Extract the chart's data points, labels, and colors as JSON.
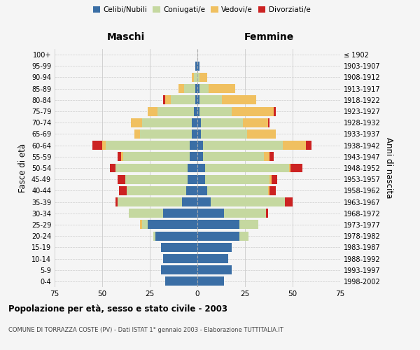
{
  "age_groups": [
    "0-4",
    "5-9",
    "10-14",
    "15-19",
    "20-24",
    "25-29",
    "30-34",
    "35-39",
    "40-44",
    "45-49",
    "50-54",
    "55-59",
    "60-64",
    "65-69",
    "70-74",
    "75-79",
    "80-84",
    "85-89",
    "90-94",
    "95-99",
    "100+"
  ],
  "birth_years": [
    "1998-2002",
    "1993-1997",
    "1988-1992",
    "1983-1987",
    "1978-1982",
    "1973-1977",
    "1968-1972",
    "1963-1967",
    "1958-1962",
    "1953-1957",
    "1948-1952",
    "1943-1947",
    "1938-1942",
    "1933-1937",
    "1928-1932",
    "1923-1927",
    "1918-1922",
    "1913-1917",
    "1908-1912",
    "1903-1907",
    "≤ 1902"
  ],
  "males": {
    "celibi": [
      17,
      19,
      18,
      19,
      22,
      26,
      18,
      8,
      6,
      5,
      5,
      4,
      4,
      3,
      3,
      2,
      1,
      1,
      0,
      1,
      0
    ],
    "coniugati": [
      0,
      0,
      0,
      0,
      1,
      3,
      18,
      34,
      31,
      33,
      38,
      35,
      44,
      27,
      26,
      19,
      13,
      6,
      2,
      0,
      0
    ],
    "vedovi": [
      0,
      0,
      0,
      0,
      0,
      1,
      0,
      0,
      0,
      0,
      0,
      1,
      2,
      3,
      6,
      5,
      3,
      3,
      1,
      0,
      0
    ],
    "divorziati": [
      0,
      0,
      0,
      0,
      0,
      0,
      0,
      1,
      4,
      4,
      3,
      2,
      5,
      0,
      0,
      0,
      1,
      0,
      0,
      0,
      0
    ]
  },
  "females": {
    "nubili": [
      14,
      18,
      16,
      18,
      22,
      22,
      14,
      7,
      5,
      4,
      4,
      3,
      3,
      2,
      2,
      1,
      1,
      1,
      0,
      1,
      0
    ],
    "coniugate": [
      0,
      0,
      0,
      0,
      5,
      10,
      22,
      39,
      32,
      34,
      44,
      32,
      42,
      24,
      22,
      17,
      12,
      5,
      1,
      0,
      0
    ],
    "vedove": [
      0,
      0,
      0,
      0,
      0,
      0,
      0,
      0,
      1,
      1,
      1,
      3,
      12,
      15,
      13,
      22,
      18,
      14,
      4,
      0,
      0
    ],
    "divorziate": [
      0,
      0,
      0,
      0,
      0,
      0,
      1,
      4,
      3,
      3,
      6,
      2,
      3,
      0,
      1,
      1,
      0,
      0,
      0,
      0,
      0
    ]
  },
  "colors": {
    "celibi": "#3a6ea5",
    "coniugati": "#c5d8a0",
    "vedovi": "#f0c060",
    "divorziati": "#cc2222"
  },
  "xlim": 75,
  "title": "Popolazione per età, sesso e stato civile - 2003",
  "subtitle": "COMUNE DI TORRAZZA COSTE (PV) - Dati ISTAT 1° gennaio 2003 - Elaborazione TUTTITALIA.IT",
  "ylabel_left": "Fasce di età",
  "ylabel_right": "Anni di nascita",
  "label_maschi": "Maschi",
  "label_femmine": "Femmine",
  "bg_color": "#f5f5f5",
  "grid_color": "#cccccc"
}
